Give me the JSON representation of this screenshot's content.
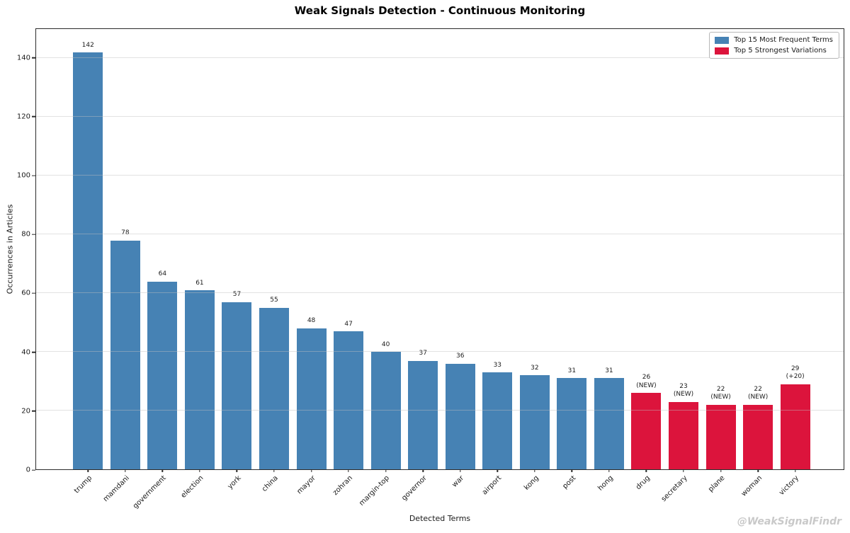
{
  "title": "Weak Signals Detection - Continuous Monitoring",
  "watermark": "@WeakSignalFindr",
  "colors": {
    "frequent": "#4682B4",
    "variation": "#DC143C",
    "grid": "rgba(190,190,190,0.45)",
    "axis": "#2b2b2b",
    "watermark": "#c9c9c9"
  },
  "chart_data": {
    "type": "bar",
    "title": "Weak Signals Detection - Continuous Monitoring",
    "xlabel": "Detected Terms",
    "ylabel": "Occurrences in Articles",
    "ylim": [
      0,
      150
    ],
    "yticks": [
      0,
      20,
      40,
      60,
      80,
      100,
      120,
      140
    ],
    "grid": "y",
    "legend_position": "upper right",
    "legend": [
      {
        "label": "Top 15 Most Frequent Terms",
        "group": "frequent"
      },
      {
        "label": "Top 5 Strongest Variations",
        "group": "variation"
      }
    ],
    "bars": [
      {
        "term": "trump",
        "value": 142,
        "group": "frequent",
        "annotation": ""
      },
      {
        "term": "mamdani",
        "value": 78,
        "group": "frequent",
        "annotation": ""
      },
      {
        "term": "government",
        "value": 64,
        "group": "frequent",
        "annotation": ""
      },
      {
        "term": "election",
        "value": 61,
        "group": "frequent",
        "annotation": ""
      },
      {
        "term": "york",
        "value": 57,
        "group": "frequent",
        "annotation": ""
      },
      {
        "term": "china",
        "value": 55,
        "group": "frequent",
        "annotation": ""
      },
      {
        "term": "mayor",
        "value": 48,
        "group": "frequent",
        "annotation": ""
      },
      {
        "term": "zohran",
        "value": 47,
        "group": "frequent",
        "annotation": ""
      },
      {
        "term": "margin-top",
        "value": 40,
        "group": "frequent",
        "annotation": ""
      },
      {
        "term": "governor",
        "value": 37,
        "group": "frequent",
        "annotation": ""
      },
      {
        "term": "war",
        "value": 36,
        "group": "frequent",
        "annotation": ""
      },
      {
        "term": "airport",
        "value": 33,
        "group": "frequent",
        "annotation": ""
      },
      {
        "term": "kong",
        "value": 32,
        "group": "frequent",
        "annotation": ""
      },
      {
        "term": "post",
        "value": 31,
        "group": "frequent",
        "annotation": ""
      },
      {
        "term": "hong",
        "value": 31,
        "group": "frequent",
        "annotation": ""
      },
      {
        "term": "drug",
        "value": 26,
        "group": "variation",
        "annotation": "(NEW)"
      },
      {
        "term": "secretary",
        "value": 23,
        "group": "variation",
        "annotation": "(NEW)"
      },
      {
        "term": "plane",
        "value": 22,
        "group": "variation",
        "annotation": "(NEW)"
      },
      {
        "term": "woman",
        "value": 22,
        "group": "variation",
        "annotation": "(NEW)"
      },
      {
        "term": "victory",
        "value": 29,
        "group": "variation",
        "annotation": "(+20)"
      }
    ]
  }
}
